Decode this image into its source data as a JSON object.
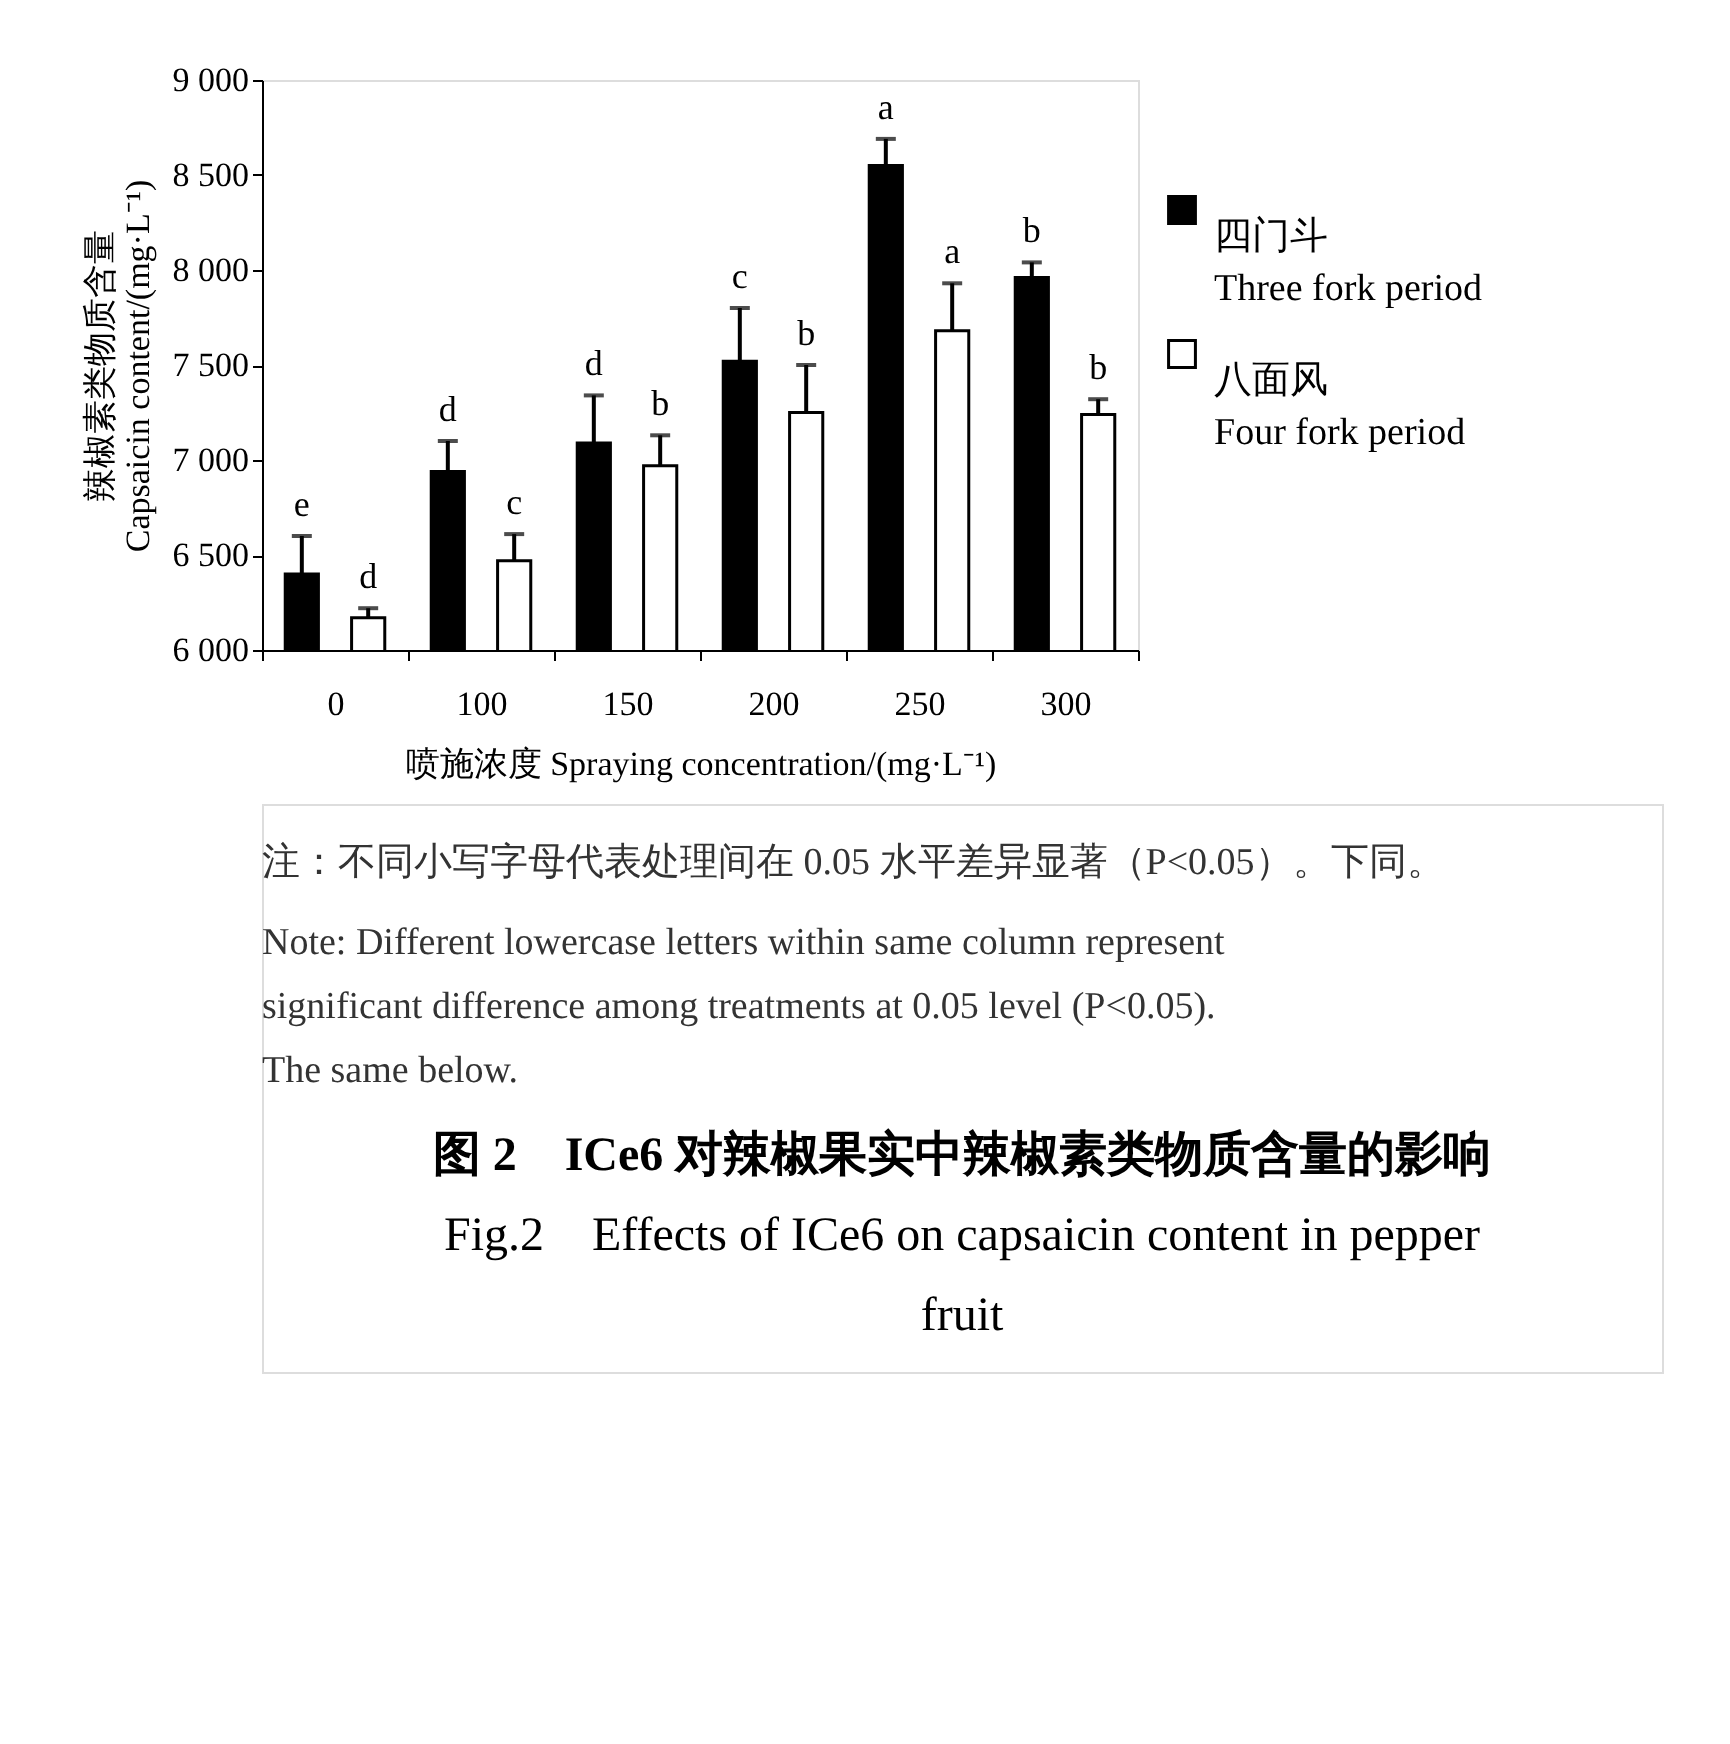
{
  "chart_data": {
    "type": "bar",
    "title": "图 2　ICe6 对辣椒果实中辣椒素类物质含量的影响",
    "subtitle": "Fig.2　Effects of ICe6 on capsaicin content in pepper fruit",
    "xlabel": "喷施浓度 Spraying concentration/(mg·L⁻¹)",
    "ylabel": "辣椒素类物质含量\nCapsaicin content/(mg·L⁻¹)",
    "categories": [
      "0",
      "100",
      "150",
      "200",
      "250",
      "300"
    ],
    "series": [
      {
        "name": "四门斗\nThree fork period",
        "color": "#000000",
        "values": [
          6400,
          6940,
          7090,
          7520,
          8550,
          7960
        ],
        "errors": [
          [
            6400,
            6600
          ],
          [
            6940,
            7100
          ],
          [
            7090,
            7340
          ],
          [
            7520,
            7800
          ],
          [
            8550,
            8690
          ],
          [
            7960,
            8040
          ]
        ],
        "value_labels": [
          "e",
          "d",
          "d",
          "c",
          "a",
          "b"
        ]
      },
      {
        "name": "八面风\nFour fork period",
        "color": "#ffffff",
        "values": [
          6170,
          6470,
          6970,
          7250,
          7680,
          7240
        ],
        "errors": [
          [
            6170,
            6220
          ],
          [
            6470,
            6610
          ],
          [
            6970,
            7130
          ],
          [
            7250,
            7500
          ],
          [
            7680,
            7930
          ],
          [
            7240,
            7320
          ]
        ],
        "value_labels": [
          "d",
          "c",
          "b",
          "b",
          "a",
          "b"
        ]
      }
    ],
    "ylim": [
      6000,
      9000
    ],
    "yticks": [
      {
        "value": 6000,
        "label": "6 000"
      },
      {
        "value": 6500,
        "label": "6 500"
      },
      {
        "value": 7000,
        "label": "7 000"
      },
      {
        "value": 7500,
        "label": "7 500"
      },
      {
        "value": 8000,
        "label": "8 000"
      },
      {
        "value": 8500,
        "label": "8 500"
      },
      {
        "value": 9000,
        "label": "9 000"
      }
    ],
    "grid": false,
    "legend": "right",
    "annotations": [
      "注：不同小写字母代表处理间在 0.05 水平差异显著（P<0.05）。下同。",
      "Note: Different lowercase letters within same column represent significant difference among treatments at 0.05 level (P<0.05). The same below."
    ]
  }
}
